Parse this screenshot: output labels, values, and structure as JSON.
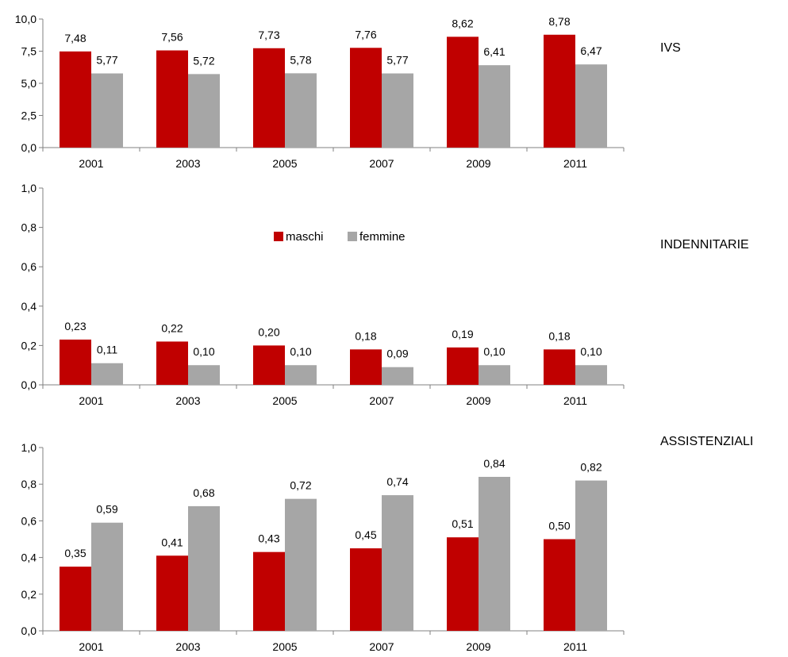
{
  "legend": [
    {
      "name": "maschi",
      "color": "#c00000"
    },
    {
      "name": "femmine",
      "color": "#a6a6a6"
    }
  ],
  "chart_data": [
    {
      "type": "bar",
      "label": "IVS",
      "categories": [
        "2001",
        "2003",
        "2005",
        "2007",
        "2009",
        "2011"
      ],
      "ylim": [
        0,
        10
      ],
      "yticks": [
        "0,0",
        "2,5",
        "5,0",
        "7,5",
        "10,0"
      ],
      "series": [
        {
          "name": "maschi",
          "color": "#c00000",
          "values": [
            7.48,
            7.56,
            7.73,
            7.76,
            8.62,
            8.78
          ],
          "labels": [
            "7,48",
            "7,56",
            "7,73",
            "7,76",
            "8,62",
            "8,78"
          ]
        },
        {
          "name": "femmine",
          "color": "#a6a6a6",
          "values": [
            5.77,
            5.72,
            5.78,
            5.77,
            6.41,
            6.47
          ],
          "labels": [
            "5,77",
            "5,72",
            "5,78",
            "5,77",
            "6,41",
            "6,47"
          ]
        }
      ]
    },
    {
      "type": "bar",
      "label": "INDENNITARIE",
      "categories": [
        "2001",
        "2003",
        "2005",
        "2007",
        "2009",
        "2011"
      ],
      "ylim": [
        0,
        1
      ],
      "yticks": [
        "0,0",
        "0,2",
        "0,4",
        "0,6",
        "0,8",
        "1,0"
      ],
      "legend_position": "top-center",
      "series": [
        {
          "name": "maschi",
          "color": "#c00000",
          "values": [
            0.23,
            0.22,
            0.2,
            0.18,
            0.19,
            0.18
          ],
          "labels": [
            "0,23",
            "0,22",
            "0,20",
            "0,18",
            "0,19",
            "0,18"
          ]
        },
        {
          "name": "femmine",
          "color": "#a6a6a6",
          "values": [
            0.11,
            0.1,
            0.1,
            0.09,
            0.1,
            0.1
          ],
          "labels": [
            "0,11",
            "0,10",
            "0,10",
            "0,09",
            "0,10",
            "0,10"
          ]
        }
      ]
    },
    {
      "type": "bar",
      "label": "ASSISTENZIALI",
      "categories": [
        "2001",
        "2003",
        "2005",
        "2007",
        "2009",
        "2011"
      ],
      "ylim": [
        0,
        1
      ],
      "yticks": [
        "0,0",
        "0,2",
        "0,4",
        "0,6",
        "0,8",
        "1,0"
      ],
      "series": [
        {
          "name": "maschi",
          "color": "#c00000",
          "values": [
            0.35,
            0.41,
            0.43,
            0.45,
            0.51,
            0.5
          ],
          "labels": [
            "0,35",
            "0,41",
            "0,43",
            "0,45",
            "0,51",
            "0,50"
          ]
        },
        {
          "name": "femmine",
          "color": "#a6a6a6",
          "values": [
            0.59,
            0.68,
            0.72,
            0.74,
            0.84,
            0.82
          ],
          "labels": [
            "0,59",
            "0,68",
            "0,72",
            "0,74",
            "0,84",
            "0,82"
          ]
        }
      ]
    }
  ]
}
